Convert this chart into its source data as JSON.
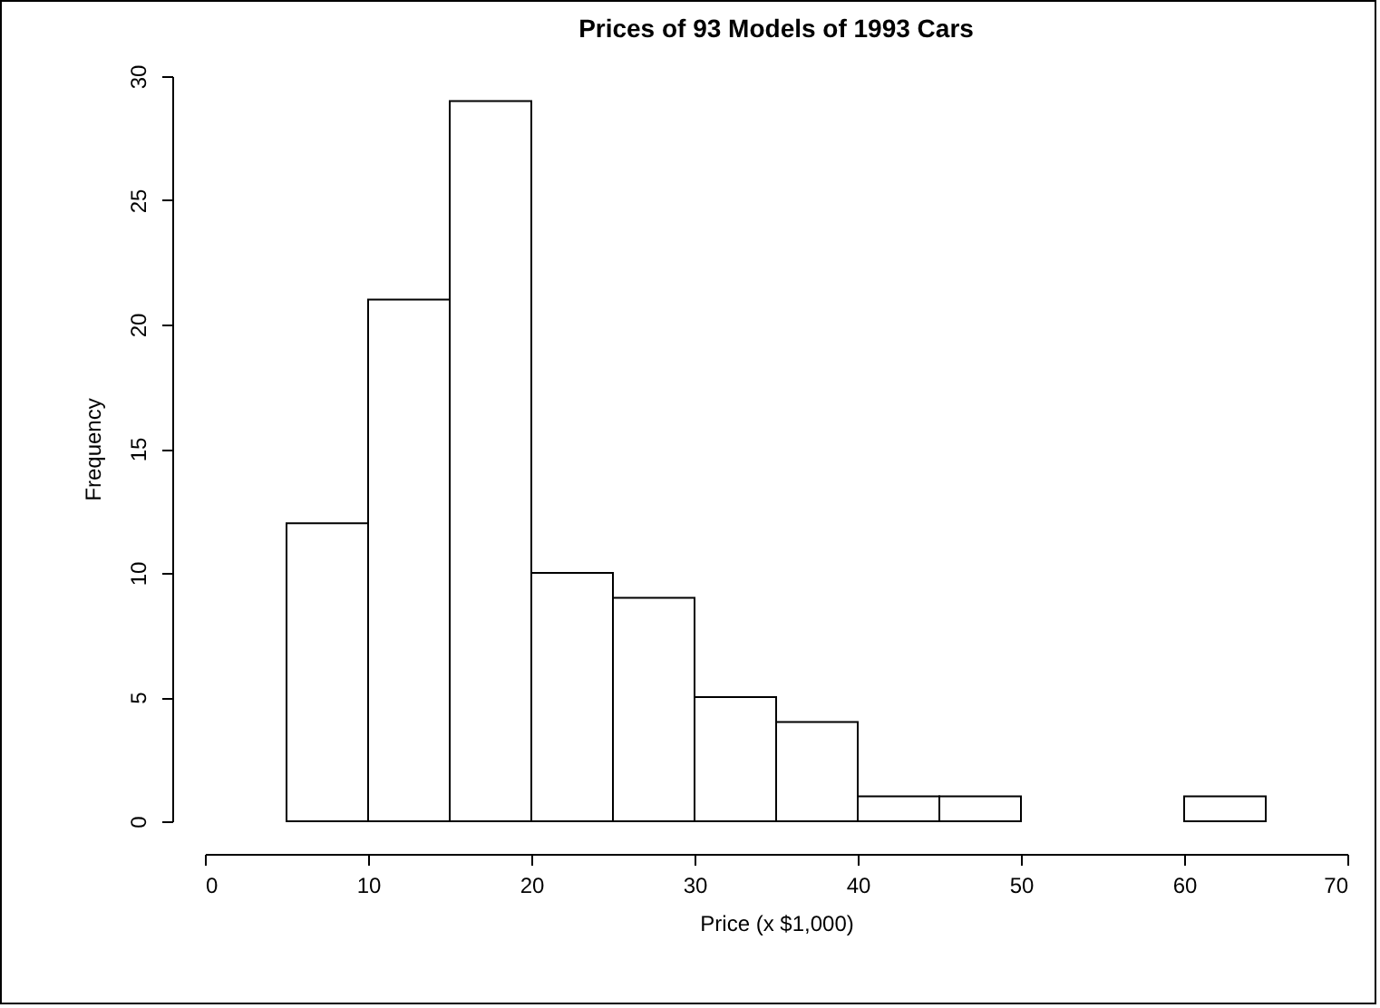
{
  "chart_data": {
    "type": "histogram",
    "title": "Prices of 93 Models of 1993 Cars",
    "xlabel": "Price (x $1,000)",
    "ylabel": "Frequency",
    "bins": [
      5,
      10,
      15,
      20,
      25,
      30,
      35,
      40,
      45,
      50,
      55,
      60,
      65
    ],
    "values": [
      12,
      21,
      29,
      10,
      9,
      5,
      4,
      1,
      1,
      0,
      0,
      1
    ],
    "color": "#ffffff",
    "xlim": [
      0,
      70
    ],
    "xticks": [
      0,
      10,
      20,
      30,
      40,
      50,
      60,
      70
    ],
    "ylim": [
      0,
      30
    ],
    "yticks": [
      0,
      5,
      10,
      15,
      20,
      25,
      30
    ],
    "grid": false
  }
}
